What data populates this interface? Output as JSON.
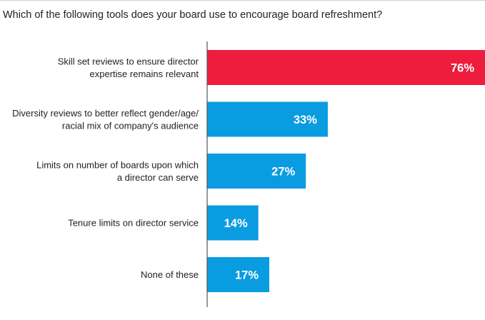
{
  "question": "Which of the following tools does your board use to encourage board refreshment?",
  "colors": {
    "highlight": "#ee1c3d",
    "default": "#0a9ce0",
    "axis": "#555555",
    "label_text": "#ffffff"
  },
  "chart_data": {
    "type": "bar",
    "orientation": "horizontal",
    "title": "Which of the following tools does your board use to encourage board refreshment?",
    "xlim": [
      0,
      76
    ],
    "grid": false,
    "categories": [
      [
        "Skill set reviews to ensure director",
        "expertise remains relevant"
      ],
      [
        "Diversity reviews to better reflect gender/age/",
        "racial mix of company's audience"
      ],
      [
        "Limits on number of boards upon which",
        "a director can serve"
      ],
      [
        "Tenure limits on director service"
      ],
      [
        "None of these"
      ]
    ],
    "values": [
      76,
      33,
      27,
      14,
      17
    ],
    "value_labels": [
      "76%",
      "33%",
      "27%",
      "14%",
      "17%"
    ],
    "highlight_index": 0
  }
}
